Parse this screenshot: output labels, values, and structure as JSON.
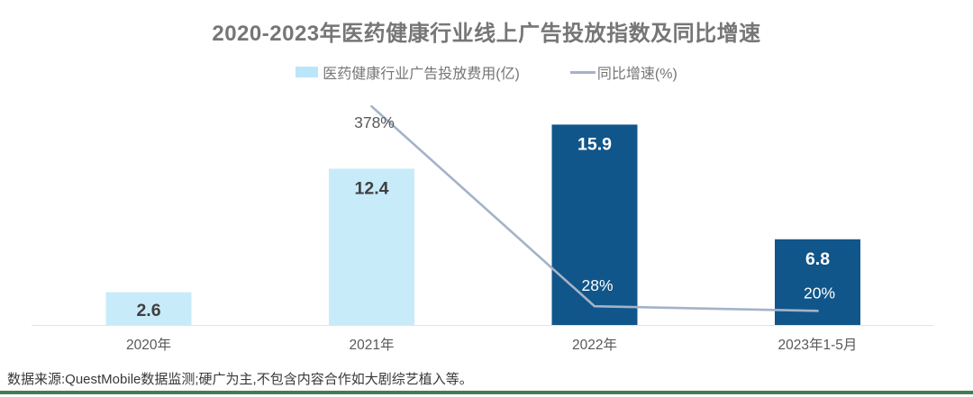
{
  "title": "2020-2023年医药健康行业线上广告投放指数及同比增速",
  "legend": {
    "bar_label": "医药健康行业广告投放费用(亿)",
    "line_label": "同比增速(%)"
  },
  "chart_data": {
    "type": "bar+line",
    "title": "2020-2023年医药健康行业线上广告投放指数及同比增速",
    "categories": [
      "2020年",
      "2021年",
      "2022年",
      "2023年1-5月"
    ],
    "series": [
      {
        "name": "医药健康行业广告投放费用(亿)",
        "type": "bar",
        "values": [
          2.6,
          12.4,
          15.9,
          6.8
        ],
        "labels": [
          "2.6",
          "12.4",
          "15.9",
          "6.8"
        ],
        "bar_colors": [
          "#c8ebfa",
          "#c8ebfa",
          "#10568a",
          "#10568a"
        ],
        "label_colors": [
          "#404040",
          "#404040",
          "#ffffff",
          "#ffffff"
        ]
      },
      {
        "name": "同比增速(%)",
        "type": "line",
        "values": [
          null,
          378,
          28,
          20
        ],
        "labels": [
          null,
          "378%",
          "28%",
          "20%"
        ],
        "label_colors": [
          null,
          "#595959",
          "#ffffff",
          "#ffffff"
        ],
        "color": "#a5b2c9"
      }
    ],
    "ylim_bar": [
      0,
      16.5
    ],
    "ylim_line_pct": [
      0,
      400
    ],
    "grid": false,
    "legend_position": "top",
    "axis_color": "#e3e3e3",
    "tick_label_color": "#595959"
  },
  "footer": {
    "source_note": "数据来源:QuestMobile数据监测;硬广为主,不包含内容合作如大剧综艺植入等。"
  },
  "colors": {
    "bar_light": "#c8ebfa",
    "bar_dark": "#10568a",
    "line": "#a5b2c9",
    "axis": "#e3e3e3",
    "accent_green": "#457a56",
    "title_gray": "#767676"
  }
}
